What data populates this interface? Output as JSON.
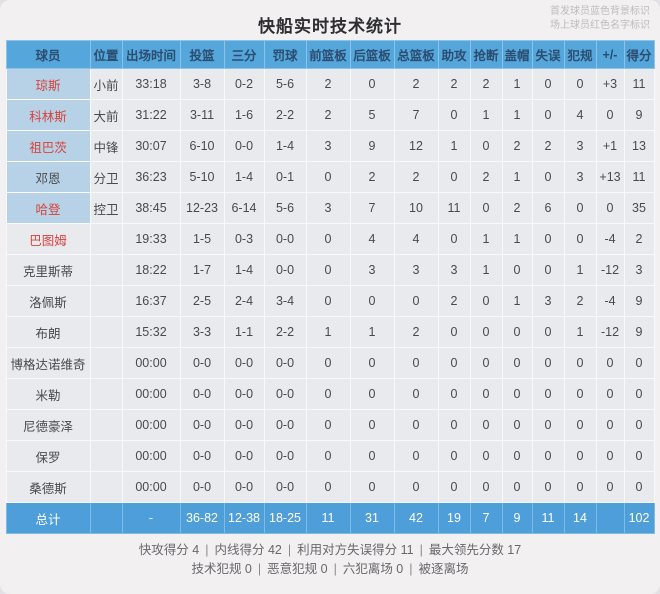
{
  "title": "快船实时技术统计",
  "legend": {
    "line1": "首发球员蓝色背景标识",
    "line2": "场上球员红色名字标识"
  },
  "columns": [
    "球员",
    "位置",
    "出场时间",
    "投篮",
    "三分",
    "罚球",
    "前篮板",
    "后篮板",
    "总篮板",
    "助攻",
    "抢断",
    "盖帽",
    "失误",
    "犯规",
    "+/-",
    "得分"
  ],
  "players": [
    {
      "name": "琼斯",
      "on_court": true,
      "starter": true,
      "cells": [
        "小前",
        "33:18",
        "3-8",
        "0-2",
        "5-6",
        "2",
        "0",
        "2",
        "2",
        "2",
        "1",
        "0",
        "0",
        "+3",
        "11"
      ]
    },
    {
      "name": "科林斯",
      "on_court": true,
      "starter": true,
      "cells": [
        "大前",
        "31:22",
        "3-11",
        "1-6",
        "2-2",
        "2",
        "5",
        "7",
        "0",
        "1",
        "1",
        "0",
        "4",
        "0",
        "9"
      ]
    },
    {
      "name": "祖巴茨",
      "on_court": true,
      "starter": true,
      "cells": [
        "中锋",
        "30:07",
        "6-10",
        "0-0",
        "1-4",
        "3",
        "9",
        "12",
        "1",
        "0",
        "2",
        "2",
        "3",
        "+1",
        "13"
      ]
    },
    {
      "name": "邓恩",
      "on_court": false,
      "starter": true,
      "cells": [
        "分卫",
        "36:23",
        "5-10",
        "1-4",
        "0-1",
        "0",
        "2",
        "2",
        "0",
        "2",
        "1",
        "0",
        "3",
        "+13",
        "11"
      ]
    },
    {
      "name": "哈登",
      "on_court": true,
      "starter": true,
      "cells": [
        "控卫",
        "38:45",
        "12-23",
        "6-14",
        "5-6",
        "3",
        "7",
        "10",
        "11",
        "0",
        "2",
        "6",
        "0",
        "0",
        "35"
      ]
    },
    {
      "name": "巴图姆",
      "on_court": true,
      "starter": false,
      "cells": [
        "",
        "19:33",
        "1-5",
        "0-3",
        "0-0",
        "0",
        "4",
        "4",
        "0",
        "1",
        "1",
        "0",
        "0",
        "-4",
        "2"
      ]
    },
    {
      "name": "克里斯蒂",
      "on_court": false,
      "starter": false,
      "cells": [
        "",
        "18:22",
        "1-7",
        "1-4",
        "0-0",
        "0",
        "3",
        "3",
        "3",
        "1",
        "0",
        "0",
        "1",
        "-12",
        "3"
      ]
    },
    {
      "name": "洛佩斯",
      "on_court": false,
      "starter": false,
      "cells": [
        "",
        "16:37",
        "2-5",
        "2-4",
        "3-4",
        "0",
        "0",
        "0",
        "2",
        "0",
        "1",
        "3",
        "2",
        "-4",
        "9"
      ]
    },
    {
      "name": "布朗",
      "on_court": false,
      "starter": false,
      "cells": [
        "",
        "15:32",
        "3-3",
        "1-1",
        "2-2",
        "1",
        "1",
        "2",
        "0",
        "0",
        "0",
        "0",
        "1",
        "-12",
        "9"
      ]
    },
    {
      "name": "博格达诺维奇",
      "on_court": false,
      "starter": false,
      "cells": [
        "",
        "00:00",
        "0-0",
        "0-0",
        "0-0",
        "0",
        "0",
        "0",
        "0",
        "0",
        "0",
        "0",
        "0",
        "0",
        "0"
      ]
    },
    {
      "name": "米勒",
      "on_court": false,
      "starter": false,
      "cells": [
        "",
        "00:00",
        "0-0",
        "0-0",
        "0-0",
        "0",
        "0",
        "0",
        "0",
        "0",
        "0",
        "0",
        "0",
        "0",
        "0"
      ]
    },
    {
      "name": "尼德豪泽",
      "on_court": false,
      "starter": false,
      "cells": [
        "",
        "00:00",
        "0-0",
        "0-0",
        "0-0",
        "0",
        "0",
        "0",
        "0",
        "0",
        "0",
        "0",
        "0",
        "0",
        "0"
      ]
    },
    {
      "name": "保罗",
      "on_court": false,
      "starter": false,
      "cells": [
        "",
        "00:00",
        "0-0",
        "0-0",
        "0-0",
        "0",
        "0",
        "0",
        "0",
        "0",
        "0",
        "0",
        "0",
        "0",
        "0"
      ]
    },
    {
      "name": "桑德斯",
      "on_court": false,
      "starter": false,
      "cells": [
        "",
        "00:00",
        "0-0",
        "0-0",
        "0-0",
        "0",
        "0",
        "0",
        "0",
        "0",
        "0",
        "0",
        "0",
        "0",
        "0"
      ]
    }
  ],
  "total": {
    "label": "总计",
    "cells": [
      "",
      "-",
      "36-82",
      "12-38",
      "18-25",
      "11",
      "31",
      "42",
      "19",
      "7",
      "9",
      "11",
      "14",
      "",
      "102"
    ]
  },
  "footer": {
    "divider": "|",
    "lines": [
      [
        {
          "label": "快攻得分",
          "value": "4"
        },
        {
          "label": "内线得分",
          "value": "42"
        },
        {
          "label": "利用对方失误得分",
          "value": "11"
        },
        {
          "label": "最大领先分数",
          "value": "17"
        }
      ],
      [
        {
          "label": "技术犯规",
          "value": "0"
        },
        {
          "label": "恶意犯规",
          "value": "0"
        },
        {
          "label": "六犯离场",
          "value": "0"
        },
        {
          "label": "被逐离场",
          "value": ""
        }
      ]
    ]
  },
  "colors": {
    "header_blue": "#55a6db",
    "starter_cell_blue": "#b7d2e6",
    "total_row_blue": "#4d9ed9",
    "on_court_red": "#d8423c",
    "row_bg": "#e8eaee",
    "legend_gray": "#bcbcbe"
  }
}
